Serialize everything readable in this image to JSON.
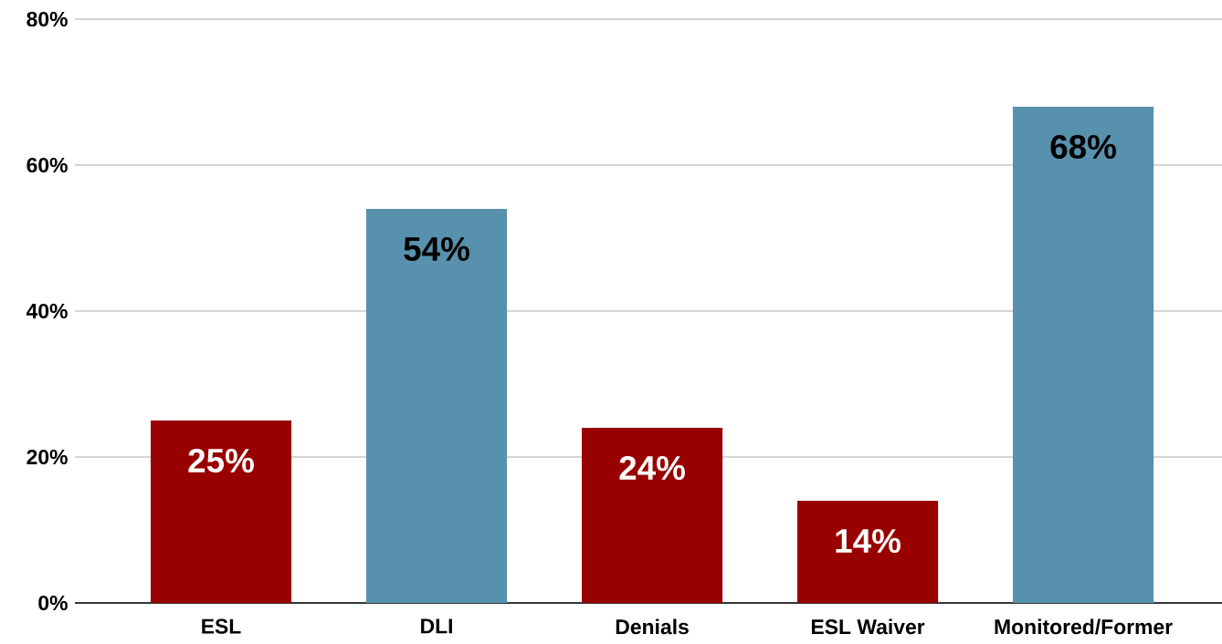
{
  "chart_data": {
    "type": "bar",
    "categories": [
      "ESL",
      "DLI",
      "Denials",
      "ESL Waiver",
      "Monitored/Former"
    ],
    "values": [
      25,
      54,
      24,
      14,
      68
    ],
    "colors": [
      "#990000",
      "#5891ad",
      "#990000",
      "#990000",
      "#5891ad"
    ],
    "value_labels": [
      "25%",
      "54%",
      "24%",
      "14%",
      "68%"
    ],
    "ylim": [
      0,
      80
    ],
    "yticks": [
      {
        "value": 0,
        "label": "0%"
      },
      {
        "value": 20,
        "label": "20%"
      },
      {
        "value": 40,
        "label": "40%"
      },
      {
        "value": 60,
        "label": "60%"
      },
      {
        "value": 80,
        "label": "80%"
      }
    ],
    "grid": "y"
  }
}
